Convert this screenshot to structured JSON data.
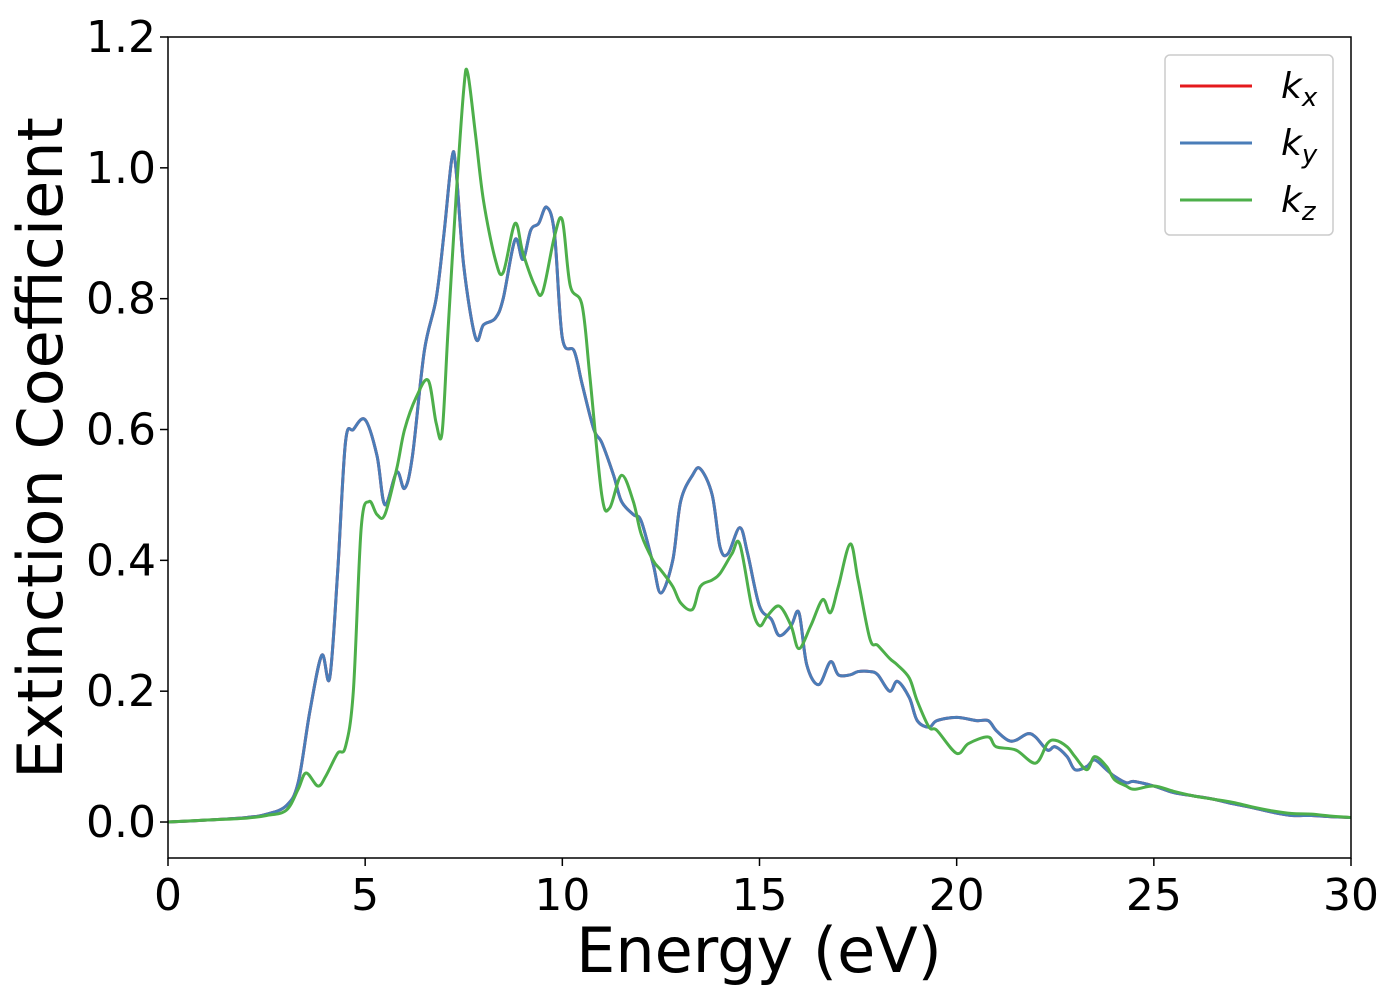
{
  "chart_data": {
    "type": "line",
    "title": "",
    "xlabel": "Energy (eV)",
    "ylabel": "Extinction Coefficient",
    "xlim": [
      0,
      30
    ],
    "ylim": [
      -0.055,
      1.2
    ],
    "xticks": [
      0,
      5,
      10,
      15,
      20,
      25,
      30
    ],
    "xtick_labels": [
      "0",
      "5",
      "10",
      "15",
      "20",
      "25",
      "30"
    ],
    "yticks": [
      0.0,
      0.2,
      0.4,
      0.6,
      0.8,
      1.0,
      1.2
    ],
    "ytick_labels": [
      "0.0",
      "0.2",
      "0.4",
      "0.6",
      "0.8",
      "1.0",
      "1.2"
    ],
    "grid": false,
    "legend_position": "top-right",
    "series": [
      {
        "name": "kx",
        "label_main": "k",
        "label_sub": "x",
        "color": "#e41a1c",
        "x": [
          0,
          1,
          2,
          2.5,
          3,
          3.3,
          3.6,
          3.9,
          4.1,
          4.3,
          4.5,
          4.7,
          5.0,
          5.3,
          5.5,
          5.8,
          6.0,
          6.2,
          6.5,
          6.8,
          7.0,
          7.2,
          7.3,
          7.5,
          7.8,
          8.0,
          8.3,
          8.5,
          8.8,
          9.0,
          9.2,
          9.4,
          9.6,
          9.8,
          10.0,
          10.3,
          10.5,
          10.8,
          11.0,
          11.3,
          11.5,
          11.8,
          12.0,
          12.3,
          12.5,
          12.8,
          13.0,
          13.3,
          13.5,
          13.8,
          14.0,
          14.2,
          14.5,
          14.7,
          15.0,
          15.3,
          15.5,
          15.8,
          16.0,
          16.2,
          16.5,
          16.8,
          17.0,
          17.3,
          17.5,
          17.8,
          18.0,
          18.3,
          18.5,
          18.8,
          19.0,
          19.3,
          19.5,
          20.0,
          20.5,
          20.8,
          21.0,
          21.3,
          21.5,
          21.8,
          22.0,
          22.3,
          22.5,
          22.8,
          23.0,
          23.3,
          23.5,
          23.8,
          24.0,
          24.3,
          24.5,
          25.0,
          25.5,
          26.0,
          26.5,
          27.0,
          27.5,
          28.0,
          28.5,
          29.0,
          29.5,
          30.0
        ],
        "y": [
          0,
          0.003,
          0.007,
          0.012,
          0.025,
          0.06,
          0.17,
          0.255,
          0.22,
          0.38,
          0.58,
          0.6,
          0.615,
          0.56,
          0.485,
          0.535,
          0.51,
          0.56,
          0.72,
          0.8,
          0.9,
          1.015,
          1.0,
          0.85,
          0.74,
          0.76,
          0.77,
          0.8,
          0.89,
          0.86,
          0.905,
          0.915,
          0.94,
          0.9,
          0.74,
          0.72,
          0.67,
          0.6,
          0.58,
          0.53,
          0.49,
          0.47,
          0.46,
          0.395,
          0.35,
          0.4,
          0.49,
          0.53,
          0.54,
          0.5,
          0.42,
          0.41,
          0.45,
          0.41,
          0.33,
          0.31,
          0.285,
          0.3,
          0.32,
          0.24,
          0.21,
          0.245,
          0.225,
          0.225,
          0.23,
          0.23,
          0.225,
          0.2,
          0.215,
          0.19,
          0.155,
          0.145,
          0.155,
          0.16,
          0.155,
          0.155,
          0.14,
          0.125,
          0.125,
          0.135,
          0.13,
          0.11,
          0.115,
          0.1,
          0.08,
          0.085,
          0.095,
          0.08,
          0.07,
          0.06,
          0.062,
          0.055,
          0.045,
          0.04,
          0.035,
          0.028,
          0.022,
          0.015,
          0.01,
          0.01,
          0.008,
          0.007
        ]
      },
      {
        "name": "ky",
        "label_main": "k",
        "label_sub": "y",
        "color": "#4a7db8",
        "x": [
          0,
          1,
          2,
          2.5,
          3,
          3.3,
          3.6,
          3.9,
          4.1,
          4.3,
          4.5,
          4.7,
          5.0,
          5.3,
          5.5,
          5.8,
          6.0,
          6.2,
          6.5,
          6.8,
          7.0,
          7.2,
          7.3,
          7.5,
          7.8,
          8.0,
          8.3,
          8.5,
          8.8,
          9.0,
          9.2,
          9.4,
          9.6,
          9.8,
          10.0,
          10.3,
          10.5,
          10.8,
          11.0,
          11.3,
          11.5,
          11.8,
          12.0,
          12.3,
          12.5,
          12.8,
          13.0,
          13.3,
          13.5,
          13.8,
          14.0,
          14.2,
          14.5,
          14.7,
          15.0,
          15.3,
          15.5,
          15.8,
          16.0,
          16.2,
          16.5,
          16.8,
          17.0,
          17.3,
          17.5,
          17.8,
          18.0,
          18.3,
          18.5,
          18.8,
          19.0,
          19.3,
          19.5,
          20.0,
          20.5,
          20.8,
          21.0,
          21.3,
          21.5,
          21.8,
          22.0,
          22.3,
          22.5,
          22.8,
          23.0,
          23.3,
          23.5,
          23.8,
          24.0,
          24.3,
          24.5,
          25.0,
          25.5,
          26.0,
          26.5,
          27.0,
          27.5,
          28.0,
          28.5,
          29.0,
          29.5,
          30.0
        ],
        "y": [
          0,
          0.003,
          0.007,
          0.012,
          0.025,
          0.06,
          0.17,
          0.255,
          0.22,
          0.38,
          0.58,
          0.6,
          0.615,
          0.56,
          0.485,
          0.535,
          0.51,
          0.56,
          0.72,
          0.8,
          0.9,
          1.015,
          1.0,
          0.85,
          0.74,
          0.76,
          0.77,
          0.8,
          0.89,
          0.86,
          0.905,
          0.915,
          0.94,
          0.9,
          0.74,
          0.72,
          0.67,
          0.6,
          0.58,
          0.53,
          0.49,
          0.47,
          0.46,
          0.395,
          0.35,
          0.4,
          0.49,
          0.53,
          0.54,
          0.5,
          0.42,
          0.41,
          0.45,
          0.41,
          0.33,
          0.31,
          0.285,
          0.3,
          0.32,
          0.24,
          0.21,
          0.245,
          0.225,
          0.225,
          0.23,
          0.23,
          0.225,
          0.2,
          0.215,
          0.19,
          0.155,
          0.145,
          0.155,
          0.16,
          0.155,
          0.155,
          0.14,
          0.125,
          0.125,
          0.135,
          0.13,
          0.11,
          0.115,
          0.1,
          0.08,
          0.085,
          0.095,
          0.08,
          0.07,
          0.06,
          0.062,
          0.055,
          0.045,
          0.04,
          0.035,
          0.028,
          0.022,
          0.015,
          0.01,
          0.01,
          0.008,
          0.007
        ]
      },
      {
        "name": "kz",
        "label_main": "k",
        "label_sub": "z",
        "color": "#4daf4a",
        "x": [
          0,
          1,
          2,
          2.5,
          3,
          3.3,
          3.5,
          3.8,
          4.0,
          4.3,
          4.5,
          4.7,
          4.9,
          5.1,
          5.3,
          5.5,
          5.8,
          6.0,
          6.3,
          6.6,
          6.8,
          6.95,
          7.1,
          7.3,
          7.5,
          7.6,
          7.8,
          8.0,
          8.3,
          8.5,
          8.8,
          9.0,
          9.3,
          9.5,
          9.8,
          10.0,
          10.2,
          10.5,
          10.7,
          11.0,
          11.2,
          11.5,
          11.8,
          12.0,
          12.3,
          12.5,
          12.8,
          13.0,
          13.3,
          13.5,
          13.8,
          14.0,
          14.3,
          14.5,
          14.8,
          15.0,
          15.2,
          15.5,
          15.8,
          16.0,
          16.3,
          16.6,
          16.8,
          17.0,
          17.3,
          17.5,
          17.8,
          18.0,
          18.3,
          18.5,
          18.8,
          19.0,
          19.3,
          19.5,
          20.0,
          20.3,
          20.8,
          21.0,
          21.5,
          22.0,
          22.3,
          22.5,
          22.8,
          23.0,
          23.3,
          23.5,
          23.8,
          24.0,
          24.3,
          24.5,
          25.0,
          25.5,
          26.0,
          26.5,
          27.0,
          27.5,
          28.0,
          28.5,
          29.0,
          29.5,
          30.0
        ],
        "y": [
          0,
          0.003,
          0.006,
          0.01,
          0.018,
          0.05,
          0.075,
          0.055,
          0.07,
          0.105,
          0.115,
          0.2,
          0.45,
          0.49,
          0.47,
          0.47,
          0.54,
          0.6,
          0.65,
          0.675,
          0.61,
          0.595,
          0.75,
          0.95,
          1.12,
          1.145,
          1.05,
          0.95,
          0.86,
          0.84,
          0.915,
          0.87,
          0.82,
          0.81,
          0.895,
          0.92,
          0.82,
          0.79,
          0.68,
          0.5,
          0.48,
          0.53,
          0.49,
          0.44,
          0.4,
          0.385,
          0.36,
          0.335,
          0.325,
          0.36,
          0.37,
          0.38,
          0.41,
          0.425,
          0.33,
          0.3,
          0.315,
          0.33,
          0.3,
          0.265,
          0.3,
          0.34,
          0.32,
          0.36,
          0.425,
          0.37,
          0.28,
          0.27,
          0.25,
          0.24,
          0.22,
          0.185,
          0.145,
          0.14,
          0.105,
          0.12,
          0.13,
          0.115,
          0.11,
          0.09,
          0.12,
          0.125,
          0.115,
          0.1,
          0.08,
          0.1,
          0.085,
          0.065,
          0.055,
          0.05,
          0.055,
          0.047,
          0.04,
          0.035,
          0.03,
          0.023,
          0.017,
          0.013,
          0.012,
          0.009,
          0.007
        ]
      }
    ]
  }
}
